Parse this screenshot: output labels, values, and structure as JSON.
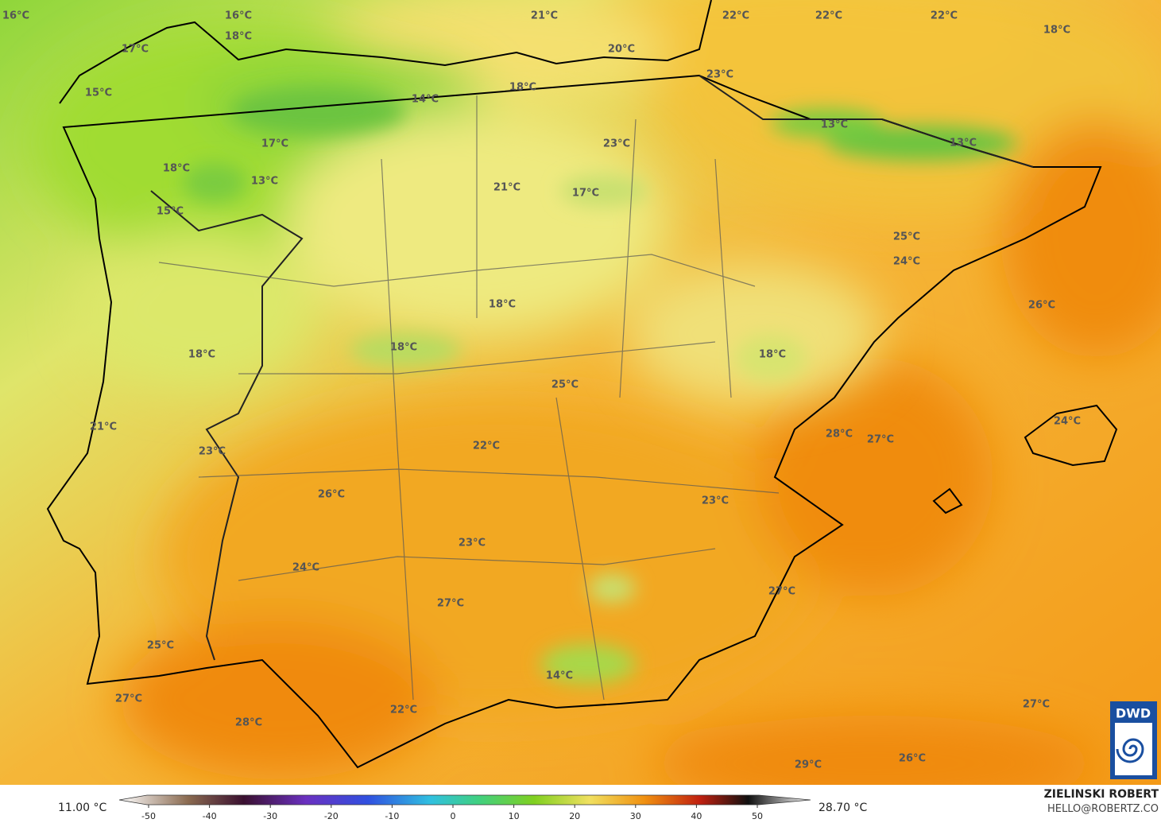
{
  "map": {
    "labels": [
      "16°C",
      "16°C",
      "18°C",
      "21°C",
      "22°C",
      "22°C",
      "22°C",
      "18°C",
      "17°C",
      "20°C",
      "15°C",
      "18°C",
      "23°C",
      "14°C",
      "13°C",
      "13°C",
      "17°C",
      "23°C",
      "18°C",
      "13°C",
      "21°C",
      "17°C",
      "15°C",
      "25°C",
      "24°C",
      "18°C",
      "26°C",
      "18°C",
      "18°C",
      "18°C",
      "25°C",
      "21°C",
      "24°C",
      "28°C",
      "27°C",
      "22°C",
      "23°C",
      "26°C",
      "23°C",
      "23°C",
      "24°C",
      "27°C",
      "27°C",
      "25°C",
      "14°C",
      "27°C",
      "27°C",
      "28°C",
      "22°C",
      "26°C",
      "29°C"
    ]
  },
  "colorbar": {
    "min_label": "11.00 °C",
    "max_label": "28.70 °C",
    "ticks": [
      -50,
      -40,
      -30,
      -20,
      -10,
      0,
      10,
      20,
      30,
      40,
      50
    ]
  },
  "credits": {
    "author": "ZIELINSKI ROBERT",
    "contact": "HELLO@ROBERTZ.CO",
    "logo": "DWD"
  }
}
